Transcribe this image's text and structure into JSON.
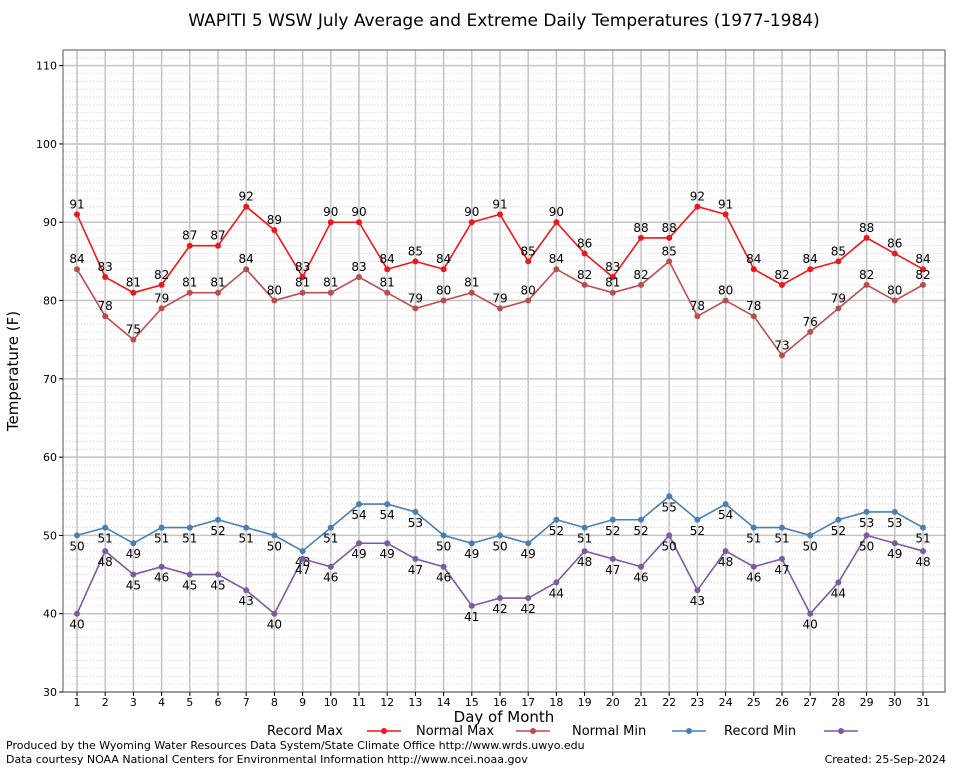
{
  "chart_data": {
    "type": "line",
    "title": "WAPITI 5 WSW July Average and Extreme Daily Temperatures (1977-1984)",
    "xlabel": "Day of Month",
    "ylabel": "Temperature (F)",
    "ylim": [
      30,
      112
    ],
    "yticks": [
      30,
      40,
      50,
      60,
      70,
      80,
      90,
      100,
      110
    ],
    "x": [
      1,
      2,
      3,
      4,
      5,
      6,
      7,
      8,
      9,
      10,
      11,
      12,
      13,
      14,
      15,
      16,
      17,
      18,
      19,
      20,
      21,
      22,
      23,
      24,
      25,
      26,
      27,
      28,
      29,
      30,
      31
    ],
    "grid": true,
    "legend_position": "bottom",
    "series": [
      {
        "name": "Record Max",
        "color": "#e8191f",
        "label_pos": "above",
        "values": [
          91,
          83,
          81,
          82,
          87,
          87,
          92,
          89,
          83,
          90,
          90,
          84,
          85,
          84,
          90,
          91,
          85,
          90,
          86,
          83,
          88,
          88,
          92,
          91,
          84,
          82,
          84,
          85,
          88,
          86,
          84
        ]
      },
      {
        "name": "Normal Max",
        "color": "#b84f4f",
        "label_pos": "above",
        "values": [
          84,
          78,
          75,
          79,
          81,
          81,
          84,
          80,
          81,
          81,
          83,
          81,
          79,
          80,
          81,
          79,
          80,
          84,
          82,
          81,
          82,
          85,
          78,
          80,
          78,
          73,
          76,
          79,
          82,
          80,
          82
        ]
      },
      {
        "name": "Normal Min",
        "color": "#4a7fb0",
        "label_pos": "below",
        "values": [
          50,
          51,
          49,
          51,
          51,
          52,
          51,
          50,
          48,
          51,
          54,
          54,
          53,
          50,
          49,
          50,
          49,
          52,
          51,
          52,
          52,
          55,
          52,
          54,
          51,
          51,
          50,
          52,
          53,
          53,
          51
        ]
      },
      {
        "name": "Record Min",
        "color": "#7d5a9e",
        "label_pos": "below",
        "values": [
          40,
          48,
          45,
          46,
          45,
          45,
          43,
          40,
          47,
          46,
          49,
          49,
          47,
          46,
          41,
          42,
          42,
          44,
          48,
          47,
          46,
          50,
          43,
          48,
          46,
          47,
          40,
          44,
          50,
          49,
          48
        ]
      }
    ]
  },
  "footer": {
    "credit_line1": "Produced by the Wyoming Water Resources Data System/State Climate Office http://www.wrds.uwyo.edu",
    "credit_line2": "Data courtesy NOAA National Centers for Environmental Information http://www.ncei.noaa.gov",
    "created": "Created:  25-Sep-2024"
  }
}
